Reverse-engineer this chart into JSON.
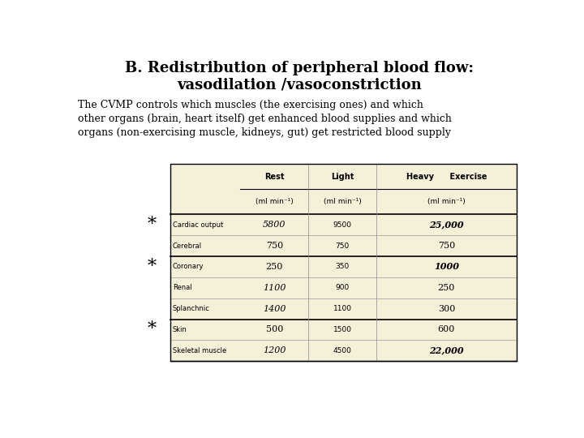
{
  "title_line1": "B. Redistribution of peripheral blood flow:",
  "title_line2": "vasodilation /vasoconstriction",
  "body_text": "The CVMP controls which muscles (the exercising ones) and which\nother organs (brain, heart itself) get enhanced blood supplies and which\norgans (non-exercising muscle, kidneys, gut) get restricted blood supply",
  "table_rows": [
    {
      "label": "Cardiac output",
      "rest": "5800",
      "light": "9500",
      "heavy": "25,000",
      "rest_bold_italic": true,
      "heavy_bold_italic": true,
      "star": true,
      "thick_above": true
    },
    {
      "label": "Cerebral",
      "rest": "750",
      "light": "750",
      "heavy": "750",
      "rest_bold_italic": false,
      "heavy_bold_italic": false,
      "star": false,
      "thick_above": false
    },
    {
      "label": "Coronary",
      "rest": "250",
      "light": "350",
      "heavy": "1000",
      "rest_bold_italic": false,
      "heavy_bold_italic": true,
      "star": true,
      "thick_above": true
    },
    {
      "label": "Renal",
      "rest": "1100",
      "light": "900",
      "heavy": "250",
      "rest_bold_italic": true,
      "heavy_bold_italic": false,
      "star": false,
      "thick_above": false
    },
    {
      "label": "Splanchnic",
      "rest": "1400",
      "light": "1100",
      "heavy": "300",
      "rest_bold_italic": true,
      "heavy_bold_italic": false,
      "star": false,
      "thick_above": false
    },
    {
      "label": "Skin",
      "rest": "500",
      "light": "1500",
      "heavy": "600",
      "rest_bold_italic": false,
      "heavy_bold_italic": false,
      "star": true,
      "thick_above": true
    },
    {
      "label": "Skeletal muscle",
      "rest": "1200",
      "light": "4500",
      "heavy": "22,000",
      "rest_bold_italic": true,
      "heavy_bold_italic": true,
      "star": false,
      "thick_above": false
    }
  ],
  "table_bg": "#f5f0d8",
  "bg_color": "#ffffff",
  "header_r1": [
    "Rest",
    "Light",
    "Heavy  Exercise"
  ],
  "header_r2": [
    "(ml min⁻¹)",
    "(ml min⁻¹)",
    "(ml min⁻¹)"
  ]
}
